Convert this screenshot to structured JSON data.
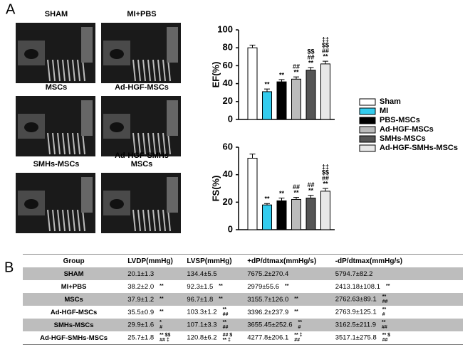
{
  "panel_labels": [
    "A",
    "B"
  ],
  "echo_panels": {
    "labels": [
      [
        "SHAM"
      ],
      [
        "MI+PBS"
      ],
      [
        "MSCs"
      ],
      [
        "Ad-HGF-MSCs"
      ],
      [
        "SMHs-MSCs"
      ],
      [
        "Ad-HGF-SMHs",
        "MSCs"
      ]
    ]
  },
  "chart_data": [
    {
      "type": "bar",
      "ylabel": "EF(%)",
      "categories": [
        "Sham",
        "MI",
        "PBS-MSCs",
        "Ad-HGF-MSCs",
        "SMHs-MSCs",
        "Ad-HGF-SMHs-MSCs"
      ],
      "colors": [
        "#ffffff",
        "#33ccee",
        "#000000",
        "#bbbbbb",
        "#555555",
        "#e8e8e8"
      ],
      "values": [
        80,
        31,
        42,
        45,
        55,
        62
      ],
      "errors": [
        3,
        3,
        2.5,
        2.5,
        3,
        3
      ],
      "annotations": [
        null,
        [
          "**"
        ],
        [
          "**"
        ],
        [
          "##",
          "**"
        ],
        [
          "$$",
          "##",
          "**"
        ],
        [
          "‡‡",
          "$$",
          "##",
          "**"
        ]
      ],
      "ylim": [
        0,
        100
      ],
      "yticks": [
        0,
        20,
        40,
        60,
        80,
        100
      ]
    },
    {
      "type": "bar",
      "ylabel": "FS(%)",
      "categories": [
        "Sham",
        "MI",
        "PBS-MSCs",
        "Ad-HGF-MSCs",
        "SMHs-MSCs",
        "Ad-HGF-SMHs-MSCs"
      ],
      "colors": [
        "#ffffff",
        "#33ccee",
        "#000000",
        "#bbbbbb",
        "#555555",
        "#e8e8e8"
      ],
      "values": [
        52,
        18,
        21,
        22,
        23,
        28
      ],
      "errors": [
        3,
        1,
        2,
        1.5,
        2,
        2
      ],
      "annotations": [
        null,
        [
          "**"
        ],
        [
          "**"
        ],
        [
          "##",
          "**"
        ],
        [
          "##",
          "**"
        ],
        [
          "‡‡",
          "$$",
          "##",
          "**"
        ]
      ],
      "ylim": [
        0,
        60
      ],
      "yticks": [
        0,
        20,
        40,
        60
      ]
    }
  ],
  "table": {
    "header": [
      "Group",
      "LVDP(mmHg)",
      "LVSP(mmHg)",
      "+dP/dtmax(mmHg/s)",
      "-dP/dtmax(mmHg/s)"
    ],
    "rows": [
      [
        {
          "text": "SHAM"
        },
        {
          "text": "20.1±1.3"
        },
        {
          "text": "134.4±5.5"
        },
        {
          "text": "7675.2±270.4"
        },
        {
          "text": "5794.7±82.2"
        }
      ],
      [
        {
          "text": "MI+PBS"
        },
        {
          "text": "38.2±2.0",
          "marks": [
            "**"
          ]
        },
        {
          "text": "92.3±1.5",
          "marks": [
            "**"
          ]
        },
        {
          "text": "2979±55.6",
          "marks": [
            "**"
          ]
        },
        {
          "text": "2413.18±108.1",
          "marks": [
            "**"
          ]
        }
      ],
      [
        {
          "text": "MSCs"
        },
        {
          "text": "37.9±1.2",
          "marks": [
            "**"
          ]
        },
        {
          "text": "96.7±1.8",
          "marks": [
            "**"
          ]
        },
        {
          "text": "3155.7±126.0",
          "marks": [
            "**"
          ]
        },
        {
          "text": "2762.63±89.1",
          "marks": [
            "**",
            "##"
          ]
        }
      ],
      [
        {
          "text": "Ad-HGF-MSCs"
        },
        {
          "text": "35.5±0.9",
          "marks": [
            "**"
          ]
        },
        {
          "text": "103.3±1.2",
          "marks": [
            "**",
            "##"
          ]
        },
        {
          "text": "3396.2±237.9",
          "marks": [
            "**"
          ]
        },
        {
          "text": "2763.9±125.1",
          "marks": [
            "**",
            "#"
          ]
        }
      ],
      [
        {
          "text": "SMHs-MSCs"
        },
        {
          "text": "29.9±1.6",
          "marks": [
            "*",
            "#"
          ]
        },
        {
          "text": "107.1±3.3",
          "marks": [
            "**",
            "##"
          ]
        },
        {
          "text": "3655.45±252.6",
          "marks": [
            "**",
            "#"
          ]
        },
        {
          "text": "3162.5±211.9",
          "marks": [
            "**",
            "##"
          ]
        }
      ],
      [
        {
          "text": "Ad-HGF-SMHs-MSCs"
        },
        {
          "text": "25.7±1.8",
          "marks": [
            "** $$",
            "## ‡"
          ]
        },
        {
          "text": "120.8±6.2",
          "marks": [
            "## $",
            "** ‡"
          ]
        },
        {
          "text": "4277.8±206.1",
          "marks": [
            "** ‡",
            "##"
          ]
        },
        {
          "text": "3517.1±275.8",
          "marks": [
            "** $",
            "##"
          ]
        }
      ]
    ]
  }
}
